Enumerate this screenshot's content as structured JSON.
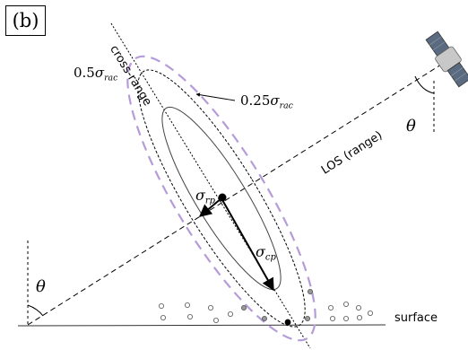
{
  "panel_label": "(b)",
  "labels": {
    "cross_range": "cross-range",
    "los": "LOS (range)",
    "surface": "surface",
    "theta": "θ",
    "sigma_rac_05_coef": "0.5",
    "sigma_rac_025_coef": "0.25",
    "sigma": "σ",
    "rac_sub": "rac",
    "rp_sub": "rp",
    "cp_sub": "cp"
  },
  "colors": {
    "ink": "#000000",
    "ellipse_outer_dashed": "#b59cd9",
    "gray_fill": "#888888",
    "satellite_body": "#bdbdbd"
  },
  "icons": {
    "satellite": "satellite-icon"
  }
}
